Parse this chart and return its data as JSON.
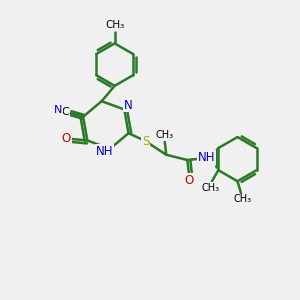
{
  "background_color": "#f0f0f0",
  "bond_color": "#2a7a2a",
  "bond_width": 1.8,
  "N_color": "#0000cc",
  "O_color": "#cc0000",
  "S_color": "#aaaa00",
  "text_fontsize": 8.5,
  "figsize": [
    3.0,
    3.0
  ],
  "dpi": 100,
  "xlim": [
    0,
    10
  ],
  "ylim": [
    0,
    10
  ]
}
